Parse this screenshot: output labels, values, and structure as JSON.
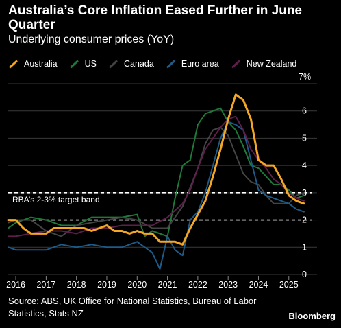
{
  "title": "Australia’s Core Inflation Eased Further in June Quarter",
  "subtitle": "Underlying consumer prices (YoY)",
  "source": "Source: ABS, UK Office for National Statistics, Bureau of Labor Statistics, Stats NZ",
  "brand": "Bloomberg",
  "chart_data": {
    "type": "line",
    "title": "Australia’s Core Inflation Eased Further in June Quarter",
    "subtitle": "Underlying consumer prices (YoY)",
    "y_unit_label": "7%",
    "ylim": [
      0,
      7
    ],
    "y_ticks": [
      0,
      1,
      2,
      3,
      4,
      5,
      6
    ],
    "xlim": [
      2015.75,
      2025.75
    ],
    "x_ticks": [
      2016,
      2017,
      2018,
      2019,
      2020,
      2021,
      2022,
      2023,
      2024,
      2025
    ],
    "grid": true,
    "legend_position": "top-left",
    "annotation": {
      "label": "RBA’s 2-3% target band",
      "band": [
        2,
        3
      ]
    },
    "series": [
      {
        "name": "US",
        "color": "#1f7a3a",
        "x": [
          2015.75,
          2016.0,
          2016.5,
          2017.0,
          2017.5,
          2018.0,
          2018.5,
          2019.0,
          2019.5,
          2020.0,
          2020.25,
          2020.5,
          2021.0,
          2021.25,
          2021.5,
          2021.75,
          2022.0,
          2022.25,
          2022.5,
          2022.75,
          2023.0,
          2023.25,
          2023.5,
          2023.75,
          2024.0,
          2024.25,
          2024.5,
          2024.75,
          2025.0,
          2025.25,
          2025.5
        ],
        "y": [
          1.7,
          1.9,
          2.1,
          2.0,
          1.8,
          1.8,
          2.1,
          2.1,
          2.1,
          2.2,
          1.4,
          1.6,
          1.4,
          2.8,
          4.0,
          4.2,
          5.5,
          5.9,
          6.0,
          6.1,
          5.6,
          5.3,
          4.7,
          4.0,
          3.9,
          3.6,
          3.3,
          3.3,
          3.1,
          2.8,
          2.9
        ]
      },
      {
        "name": "Canada",
        "color": "#444444",
        "x": [
          2015.75,
          2016.0,
          2016.5,
          2017.0,
          2017.5,
          2018.0,
          2018.5,
          2019.0,
          2019.5,
          2020.0,
          2020.5,
          2021.0,
          2021.5,
          2022.0,
          2022.25,
          2022.5,
          2022.75,
          2023.0,
          2023.25,
          2023.5,
          2023.75,
          2024.0,
          2024.25,
          2024.5,
          2024.75,
          2025.0,
          2025.25,
          2025.5
        ],
        "y": [
          1.9,
          2.0,
          2.0,
          1.6,
          1.4,
          1.8,
          1.9,
          2.0,
          2.1,
          2.0,
          1.7,
          1.7,
          2.5,
          3.9,
          4.8,
          5.3,
          5.4,
          5.1,
          4.4,
          3.7,
          3.4,
          3.3,
          2.9,
          2.6,
          2.6,
          2.6,
          2.9,
          3.0
        ]
      },
      {
        "name": "Euro area",
        "color": "#1d5b8a",
        "x": [
          2015.75,
          2016.0,
          2016.5,
          2017.0,
          2017.5,
          2018.0,
          2018.5,
          2019.0,
          2019.5,
          2020.0,
          2020.5,
          2020.75,
          2021.0,
          2021.25,
          2021.5,
          2021.75,
          2022.0,
          2022.25,
          2022.5,
          2022.75,
          2023.0,
          2023.25,
          2023.5,
          2023.75,
          2024.0,
          2024.25,
          2024.5,
          2024.75,
          2025.0,
          2025.25,
          2025.5
        ],
        "y": [
          1.0,
          0.9,
          0.9,
          0.9,
          1.1,
          1.0,
          1.1,
          1.0,
          1.0,
          1.2,
          0.8,
          0.2,
          1.4,
          0.9,
          0.7,
          2.0,
          2.3,
          3.0,
          4.0,
          5.0,
          5.6,
          5.5,
          5.3,
          4.2,
          3.1,
          2.9,
          2.8,
          2.7,
          2.6,
          2.4,
          2.3
        ]
      },
      {
        "name": "New Zealand",
        "color": "#5e1f4a",
        "x": [
          2015.75,
          2016.0,
          2016.5,
          2017.0,
          2017.5,
          2018.0,
          2018.5,
          2019.0,
          2019.5,
          2020.0,
          2020.5,
          2021.0,
          2021.5,
          2021.75,
          2022.0,
          2022.25,
          2022.5,
          2022.75,
          2023.0,
          2023.25,
          2023.5,
          2023.75,
          2024.0,
          2024.25,
          2024.5,
          2024.75,
          2025.0,
          2025.25,
          2025.5
        ],
        "y": [
          1.4,
          1.4,
          1.5,
          1.6,
          1.6,
          1.5,
          1.7,
          1.7,
          1.8,
          1.8,
          1.8,
          2.1,
          2.6,
          3.1,
          3.9,
          4.6,
          5.0,
          5.4,
          5.7,
          5.8,
          5.3,
          4.6,
          4.2,
          3.9,
          3.5,
          3.3,
          3.0,
          2.8,
          2.7
        ]
      },
      {
        "name": "Australia",
        "color": "#f5a623",
        "x": [
          2015.75,
          2016.0,
          2016.25,
          2016.5,
          2016.75,
          2017.0,
          2017.25,
          2017.5,
          2017.75,
          2018.0,
          2018.25,
          2018.5,
          2018.75,
          2019.0,
          2019.25,
          2019.5,
          2019.75,
          2020.0,
          2020.25,
          2020.5,
          2020.75,
          2021.0,
          2021.25,
          2021.5,
          2021.75,
          2022.0,
          2022.25,
          2022.5,
          2022.75,
          2023.0,
          2023.25,
          2023.5,
          2023.75,
          2024.0,
          2024.25,
          2024.5,
          2024.75,
          2025.0,
          2025.25,
          2025.5
        ],
        "y": [
          2.0,
          2.0,
          1.7,
          1.5,
          1.5,
          1.5,
          1.7,
          1.7,
          1.7,
          1.7,
          1.7,
          1.6,
          1.7,
          1.8,
          1.6,
          1.6,
          1.5,
          1.6,
          1.5,
          1.5,
          1.2,
          1.2,
          1.2,
          1.1,
          1.7,
          2.2,
          2.7,
          3.6,
          4.6,
          5.7,
          6.6,
          6.4,
          5.7,
          4.2,
          4.0,
          4.0,
          3.5,
          2.9,
          2.7,
          2.6
        ]
      }
    ]
  }
}
